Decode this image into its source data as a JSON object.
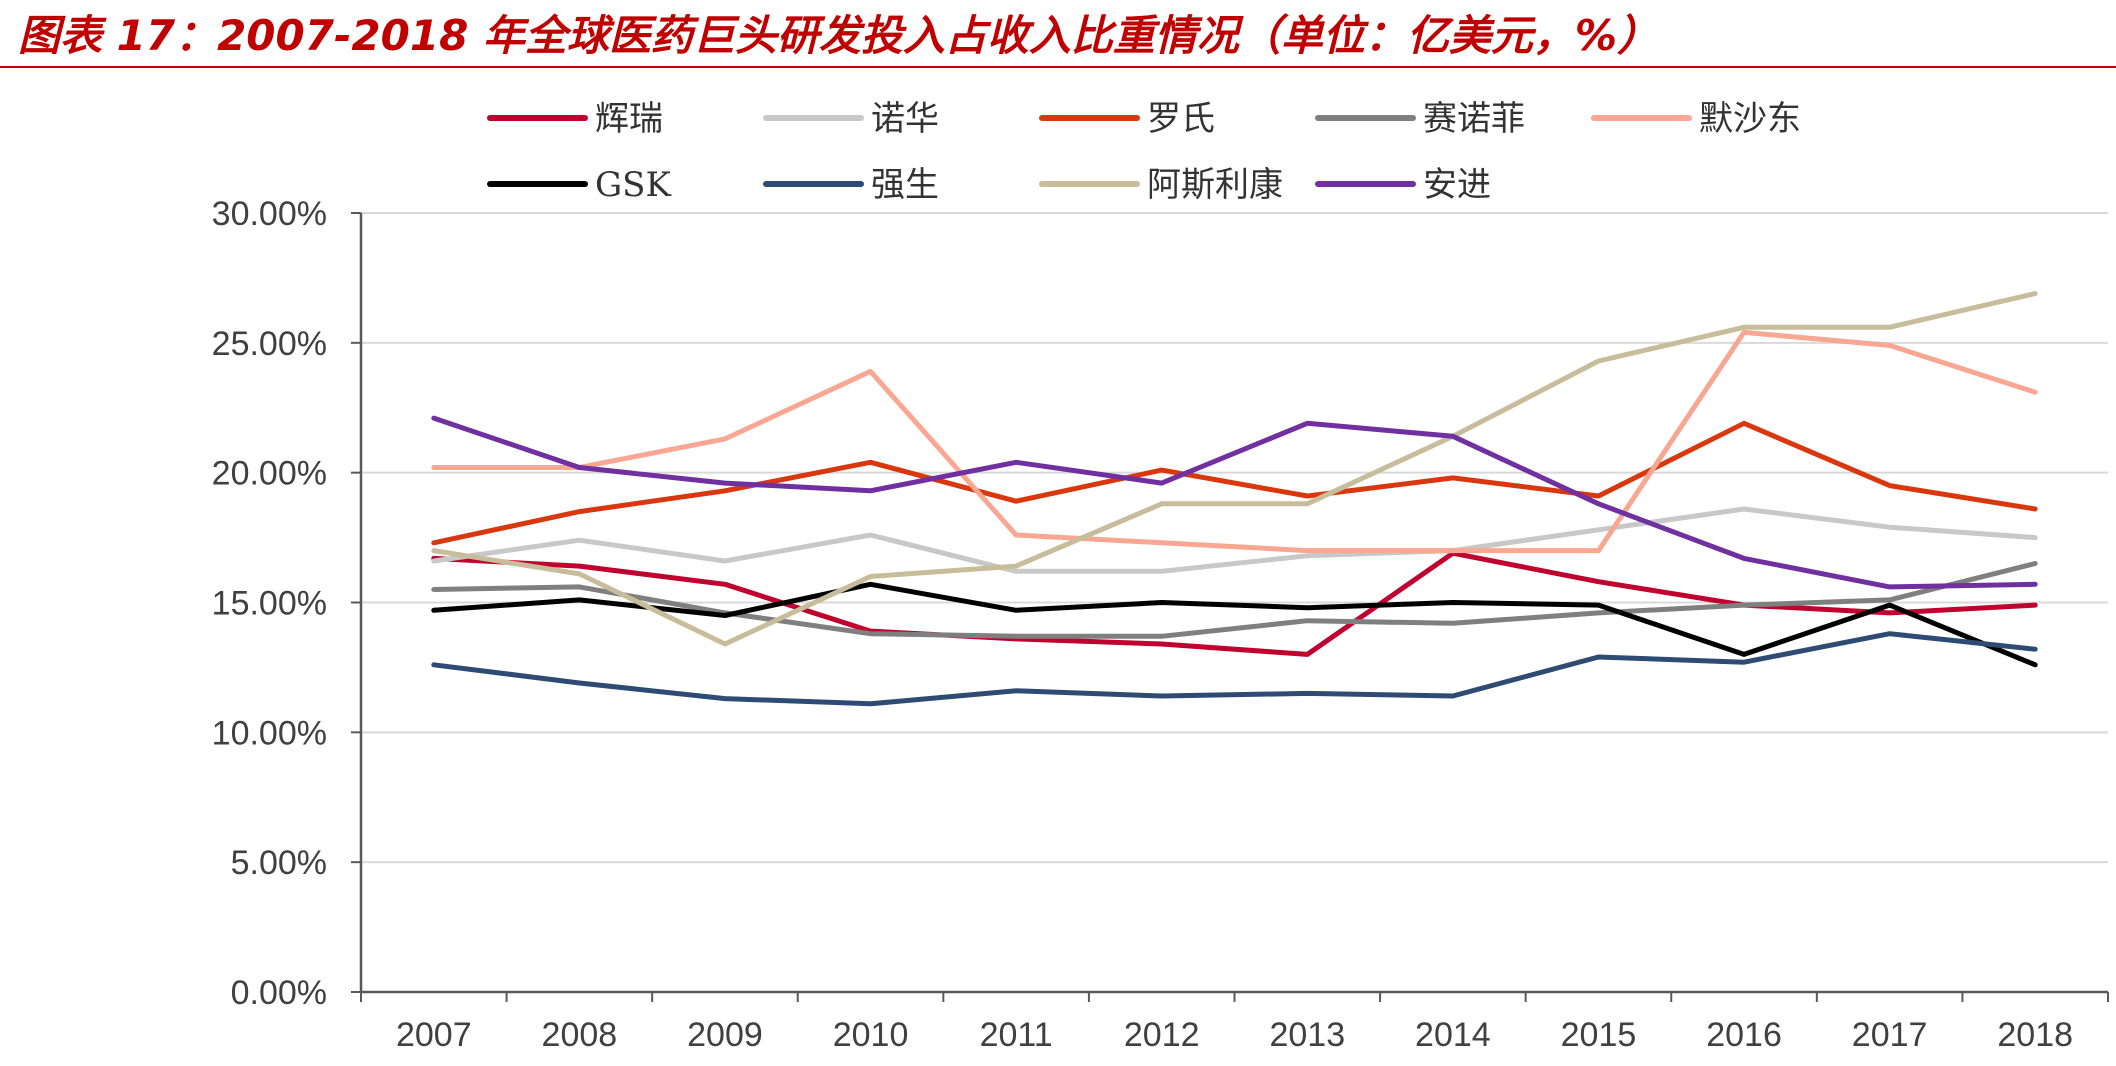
{
  "title": "图表 17：2007-2018 年全球医药巨头研发投入占收入比重情况（单位：亿美元，%）",
  "colors": {
    "title": "#c00000",
    "grid": "#d9d9d9",
    "axis": "#595959"
  },
  "chart_data": {
    "type": "line",
    "title": "2007-2018 年全球医药巨头研发投入占收入比重情况（单位：亿美元，%）",
    "xlabel": "",
    "ylabel": "",
    "ylim": [
      0,
      30
    ],
    "y_ticks": [
      0,
      5,
      10,
      15,
      20,
      25,
      30
    ],
    "y_tick_labels": [
      "0.00%",
      "5.00%",
      "10.00%",
      "15.00%",
      "20.00%",
      "25.00%",
      "30.00%"
    ],
    "grid": true,
    "legend_position": "top",
    "categories": [
      "2007",
      "2008",
      "2009",
      "2010",
      "2011",
      "2012",
      "2013",
      "2014",
      "2015",
      "2016",
      "2017",
      "2018"
    ],
    "series": [
      {
        "name": "辉瑞",
        "color": "#c0002f",
        "values": [
          16.7,
          16.4,
          15.7,
          13.9,
          13.6,
          13.4,
          13.0,
          16.9,
          15.8,
          14.9,
          14.6,
          14.9
        ]
      },
      {
        "name": "诺华",
        "color": "#c8c8c8",
        "values": [
          16.6,
          17.4,
          16.6,
          17.6,
          16.2,
          16.2,
          16.8,
          17.0,
          17.8,
          18.6,
          17.9,
          17.5
        ]
      },
      {
        "name": "罗氏",
        "color": "#d9380f",
        "values": [
          17.3,
          18.5,
          19.3,
          20.4,
          18.9,
          20.1,
          19.1,
          19.8,
          19.1,
          21.9,
          19.5,
          18.6
        ]
      },
      {
        "name": "赛诺菲",
        "color": "#7f7f7f",
        "values": [
          15.5,
          15.6,
          14.6,
          13.8,
          13.7,
          13.7,
          14.3,
          14.2,
          14.6,
          14.9,
          15.1,
          16.5
        ]
      },
      {
        "name": "默沙东",
        "color": "#f9a792",
        "values": [
          20.2,
          20.2,
          21.3,
          23.9,
          17.6,
          17.3,
          17.0,
          17.0,
          17.0,
          25.4,
          24.9,
          23.1
        ]
      },
      {
        "name": "GSK",
        "color": "#000000",
        "values": [
          14.7,
          15.1,
          14.5,
          15.7,
          14.7,
          15.0,
          14.8,
          15.0,
          14.9,
          13.0,
          14.9,
          12.6
        ]
      },
      {
        "name": "强生",
        "color": "#2e4b73",
        "values": [
          12.6,
          11.9,
          11.3,
          11.1,
          11.6,
          11.4,
          11.5,
          11.4,
          12.9,
          12.7,
          13.8,
          13.2
        ]
      },
      {
        "name": "阿斯利康",
        "color": "#c8bd9a",
        "values": [
          17.0,
          16.1,
          13.4,
          16.0,
          16.4,
          18.8,
          18.8,
          21.4,
          24.3,
          25.6,
          25.6,
          26.9
        ]
      },
      {
        "name": "安进",
        "color": "#7030a0",
        "values": [
          22.1,
          20.2,
          19.6,
          19.3,
          20.4,
          19.6,
          21.9,
          21.4,
          18.8,
          16.7,
          15.6,
          15.7
        ]
      }
    ]
  }
}
